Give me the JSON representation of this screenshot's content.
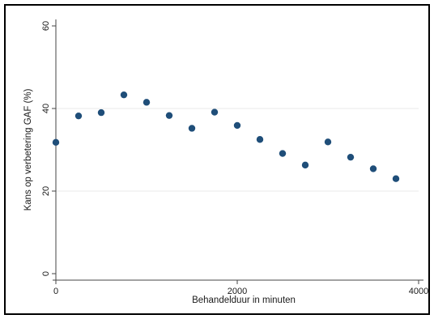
{
  "chart_data": {
    "type": "scatter",
    "xlabel": "Behandelduur in minuten",
    "ylabel": "Kans op verbetering GAF (%)",
    "xlim": [
      0,
      4000
    ],
    "ylim": [
      0,
      60
    ],
    "x_ticks": [
      "0",
      "2000",
      "4000"
    ],
    "y_ticks": [
      "0",
      "20",
      "40",
      "60"
    ],
    "grid": "horizontal",
    "points": [
      {
        "x": 0,
        "y": 31.8
      },
      {
        "x": 250,
        "y": 38.2
      },
      {
        "x": 500,
        "y": 39.0
      },
      {
        "x": 750,
        "y": 43.3
      },
      {
        "x": 1000,
        "y": 41.5
      },
      {
        "x": 1250,
        "y": 38.3
      },
      {
        "x": 1500,
        "y": 35.2
      },
      {
        "x": 1750,
        "y": 39.1
      },
      {
        "x": 2000,
        "y": 35.9
      },
      {
        "x": 2250,
        "y": 32.5
      },
      {
        "x": 2500,
        "y": 29.1
      },
      {
        "x": 2750,
        "y": 26.3
      },
      {
        "x": 3000,
        "y": 31.9
      },
      {
        "x": 3250,
        "y": 28.2
      },
      {
        "x": 3500,
        "y": 25.4
      },
      {
        "x": 3750,
        "y": 23.0
      }
    ],
    "marker_color": "#1f4e79",
    "grid_color": "#e8e8e8",
    "axis_color": "#444444"
  }
}
